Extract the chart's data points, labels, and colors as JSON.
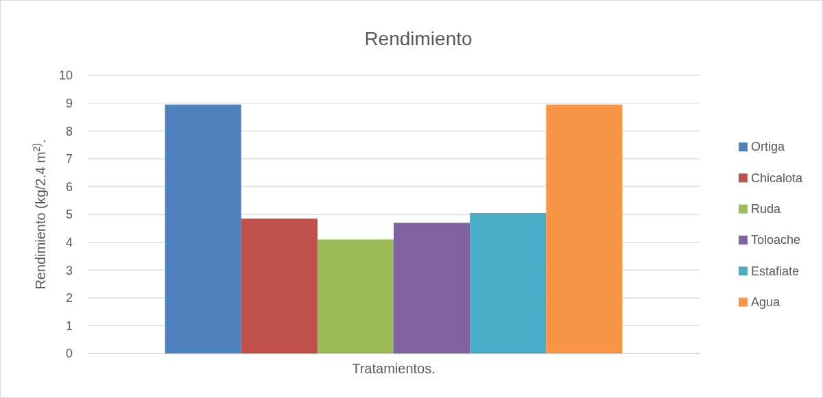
{
  "chart_data": {
    "type": "bar",
    "title": "Rendimiento",
    "ylabel": "Rendimiento (kg/2.4 m$^{2)}$.",
    "categories": [
      "Tratamientos."
    ],
    "series": [
      {
        "name": "Ortiga",
        "color": "#4f81bd",
        "values": [
          8.95
        ]
      },
      {
        "name": "Chicalota",
        "color": "#c0504d",
        "values": [
          4.85
        ]
      },
      {
        "name": "Ruda",
        "color": "#9bbb59",
        "values": [
          4.1
        ]
      },
      {
        "name": "Toloache",
        "color": "#8064a2",
        "values": [
          4.7
        ]
      },
      {
        "name": "Estafiate",
        "color": "#4bacc6",
        "values": [
          5.05
        ]
      },
      {
        "name": "Agua",
        "color": "#f79646",
        "values": [
          8.95
        ]
      }
    ],
    "ylim": [
      0,
      10
    ],
    "yticks": [
      0,
      1,
      2,
      3,
      4,
      5,
      6,
      7,
      8,
      9,
      10
    ],
    "grid": "y",
    "legend": "right"
  }
}
